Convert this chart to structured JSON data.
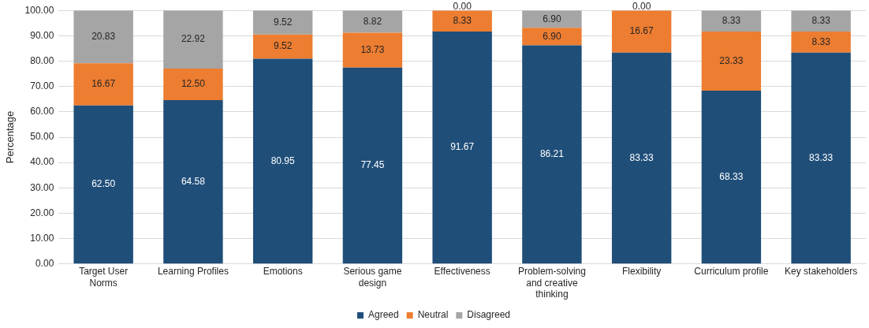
{
  "chart_data": {
    "type": "bar",
    "stacked": true,
    "ylabel": "Percentage",
    "categories": [
      "Target User Norms",
      "Learning Profiles",
      "Emotions",
      "Serious game design",
      "Effectiveness",
      "Problem-solving and creative thinking",
      "Flexibility",
      "Curriculum profile",
      "Key stakeholders"
    ],
    "series": [
      {
        "name": "Agreed",
        "color": "#1f4e79",
        "values": [
          62.5,
          64.58,
          80.95,
          77.45,
          91.67,
          86.21,
          83.33,
          68.33,
          83.33
        ],
        "value_labels": [
          "62.50",
          "64.58",
          "80.95",
          "77.45",
          "91.67",
          "86.21",
          "83.33",
          "68.33",
          "83.33"
        ]
      },
      {
        "name": "Neutral",
        "color": "#ed7d31",
        "values": [
          16.67,
          12.5,
          9.52,
          13.73,
          8.33,
          6.9,
          16.67,
          23.33,
          8.33
        ],
        "value_labels": [
          "16.67",
          "12.50",
          "9.52",
          "13.73",
          "8.33",
          "6.90",
          "16.67",
          "23.33",
          "8.33"
        ]
      },
      {
        "name": "Disagreed",
        "color": "#a5a5a5",
        "values": [
          20.83,
          22.92,
          9.52,
          8.82,
          0,
          6.9,
          0,
          8.33,
          8.33
        ],
        "value_labels": [
          "20.83",
          "22.92",
          "9.52",
          "8.82",
          "0.00",
          "6.90",
          "0.00",
          "8.33",
          "8.33"
        ]
      }
    ],
    "ylim": [
      0,
      100
    ],
    "yticks": [
      {
        "value": 0,
        "label": "0.00"
      },
      {
        "value": 10,
        "label": "10.00"
      },
      {
        "value": 20,
        "label": "20.00"
      },
      {
        "value": 30,
        "label": "30.00"
      },
      {
        "value": 40,
        "label": "40.00"
      },
      {
        "value": 50,
        "label": "50.00"
      },
      {
        "value": 60,
        "label": "60.00"
      },
      {
        "value": 70,
        "label": "70.00"
      },
      {
        "value": 80,
        "label": "80.00"
      },
      {
        "value": 90,
        "label": "90.00"
      },
      {
        "value": 100,
        "label": "100.00"
      }
    ],
    "grid": "y",
    "legend": "bottom"
  }
}
